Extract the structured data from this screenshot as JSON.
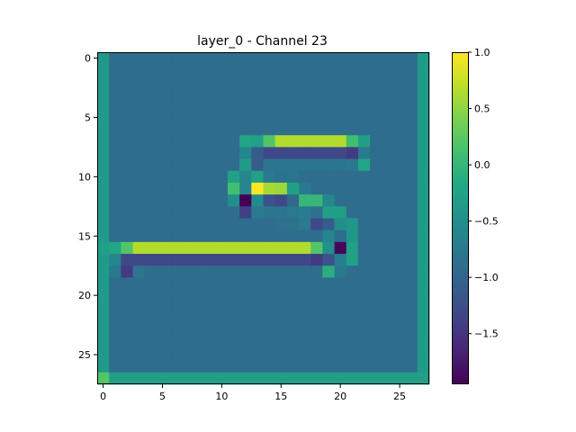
{
  "chart_data": {
    "type": "heatmap",
    "title": "layer_0 - Channel 23",
    "xlabel": "",
    "ylabel": "",
    "rows": 28,
    "cols": 28,
    "xlim": [
      -0.5,
      27.5
    ],
    "ylim": [
      27.5,
      -0.5
    ],
    "x_ticks": [
      0,
      5,
      10,
      15,
      20,
      25
    ],
    "y_ticks": [
      0,
      5,
      10,
      15,
      20,
      25
    ],
    "colormap": "viridis",
    "vmin": -1.95,
    "vmax": 1.0,
    "colorbar_ticks": [
      {
        "value": 1.0,
        "label": "1.0"
      },
      {
        "value": 0.5,
        "label": "0.5"
      },
      {
        "value": 0.0,
        "label": "0.0"
      },
      {
        "value": -0.5,
        "label": "−0.5"
      },
      {
        "value": -1.0,
        "label": "−1.0"
      },
      {
        "value": -1.5,
        "label": "−1.5"
      }
    ],
    "background_value": -0.9,
    "border": {
      "left": -0.35,
      "right": -0.35,
      "bottom": -0.3,
      "top": -0.9
    },
    "overrides": [
      {
        "r": 0,
        "c": 0,
        "v": -0.4
      },
      {
        "r": 0,
        "c": 27,
        "v": -0.35
      },
      {
        "r": 27,
        "c": 0,
        "v": 0.2
      },
      {
        "r": 27,
        "c": 27,
        "v": -0.3
      },
      {
        "r": 7,
        "c": 12,
        "v": -0.2
      },
      {
        "r": 7,
        "c": 13,
        "v": -0.3
      },
      {
        "r": 7,
        "c": 14,
        "v": 0.2
      },
      {
        "r": 7,
        "c": 15,
        "v": 0.65
      },
      {
        "r": 7,
        "c": 16,
        "v": 0.65
      },
      {
        "r": 7,
        "c": 17,
        "v": 0.65
      },
      {
        "r": 7,
        "c": 18,
        "v": 0.65
      },
      {
        "r": 7,
        "c": 19,
        "v": 0.65
      },
      {
        "r": 7,
        "c": 20,
        "v": 0.65
      },
      {
        "r": 7,
        "c": 21,
        "v": 0.1
      },
      {
        "r": 7,
        "c": 22,
        "v": -0.3
      },
      {
        "r": 8,
        "c": 12,
        "v": -0.6
      },
      {
        "r": 8,
        "c": 13,
        "v": -1.1
      },
      {
        "r": 8,
        "c": 14,
        "v": -1.3
      },
      {
        "r": 8,
        "c": 15,
        "v": -1.3
      },
      {
        "r": 8,
        "c": 16,
        "v": -1.3
      },
      {
        "r": 8,
        "c": 17,
        "v": -1.3
      },
      {
        "r": 8,
        "c": 18,
        "v": -1.3
      },
      {
        "r": 8,
        "c": 19,
        "v": -1.3
      },
      {
        "r": 8,
        "c": 20,
        "v": -1.3
      },
      {
        "r": 8,
        "c": 21,
        "v": -1.45
      },
      {
        "r": 8,
        "c": 22,
        "v": -0.75
      },
      {
        "r": 9,
        "c": 12,
        "v": -0.35
      },
      {
        "r": 9,
        "c": 13,
        "v": -1.1
      },
      {
        "r": 9,
        "c": 14,
        "v": -0.8
      },
      {
        "r": 9,
        "c": 15,
        "v": -0.8
      },
      {
        "r": 9,
        "c": 16,
        "v": -0.8
      },
      {
        "r": 9,
        "c": 17,
        "v": -0.8
      },
      {
        "r": 9,
        "c": 18,
        "v": -0.8
      },
      {
        "r": 9,
        "c": 19,
        "v": -0.8
      },
      {
        "r": 9,
        "c": 20,
        "v": -0.8
      },
      {
        "r": 9,
        "c": 21,
        "v": -0.75
      },
      {
        "r": 9,
        "c": 22,
        "v": -0.2
      },
      {
        "r": 10,
        "c": 11,
        "v": -0.3
      },
      {
        "r": 10,
        "c": 12,
        "v": -0.6
      },
      {
        "r": 10,
        "c": 13,
        "v": -0.3
      },
      {
        "r": 10,
        "c": 14,
        "v": -0.75
      },
      {
        "r": 10,
        "c": 15,
        "v": -0.85
      },
      {
        "r": 10,
        "c": 16,
        "v": -0.8
      },
      {
        "r": 11,
        "c": 11,
        "v": 0.1
      },
      {
        "r": 11,
        "c": 12,
        "v": -0.6
      },
      {
        "r": 11,
        "c": 13,
        "v": 1.0
      },
      {
        "r": 11,
        "c": 14,
        "v": 0.6
      },
      {
        "r": 11,
        "c": 15,
        "v": 0.55
      },
      {
        "r": 11,
        "c": 16,
        "v": -0.3
      },
      {
        "r": 11,
        "c": 17,
        "v": -0.75
      },
      {
        "r": 12,
        "c": 11,
        "v": -0.5
      },
      {
        "r": 12,
        "c": 12,
        "v": -1.95
      },
      {
        "r": 12,
        "c": 13,
        "v": -0.55
      },
      {
        "r": 12,
        "c": 14,
        "v": -1.2
      },
      {
        "r": 12,
        "c": 15,
        "v": -1.3
      },
      {
        "r": 12,
        "c": 16,
        "v": -0.95
      },
      {
        "r": 12,
        "c": 17,
        "v": 0.0
      },
      {
        "r": 12,
        "c": 18,
        "v": 0.0
      },
      {
        "r": 12,
        "c": 19,
        "v": -0.6
      },
      {
        "r": 13,
        "c": 12,
        "v": -1.4
      },
      {
        "r": 13,
        "c": 13,
        "v": -0.75
      },
      {
        "r": 13,
        "c": 14,
        "v": -0.8
      },
      {
        "r": 13,
        "c": 15,
        "v": -0.8
      },
      {
        "r": 13,
        "c": 16,
        "v": -0.75
      },
      {
        "r": 13,
        "c": 17,
        "v": -0.7
      },
      {
        "r": 13,
        "c": 18,
        "v": -0.85
      },
      {
        "r": 13,
        "c": 19,
        "v": -0.3
      },
      {
        "r": 13,
        "c": 20,
        "v": -0.3
      },
      {
        "r": 14,
        "c": 15,
        "v": -0.85
      },
      {
        "r": 14,
        "c": 16,
        "v": -0.85
      },
      {
        "r": 14,
        "c": 17,
        "v": -0.75
      },
      {
        "r": 14,
        "c": 18,
        "v": -1.3
      },
      {
        "r": 14,
        "c": 19,
        "v": -1.1
      },
      {
        "r": 14,
        "c": 20,
        "v": -0.5
      },
      {
        "r": 14,
        "c": 21,
        "v": -0.4
      },
      {
        "r": 15,
        "c": 19,
        "v": -0.6
      },
      {
        "r": 15,
        "c": 20,
        "v": -0.9
      },
      {
        "r": 15,
        "c": 21,
        "v": -0.4
      },
      {
        "r": 16,
        "c": 0,
        "v": -0.3
      },
      {
        "r": 16,
        "c": 1,
        "v": -0.2
      },
      {
        "r": 16,
        "c": 2,
        "v": 0.2
      },
      {
        "r": 16,
        "c": 3,
        "v": 0.65
      },
      {
        "r": 16,
        "c": 4,
        "v": 0.65
      },
      {
        "r": 16,
        "c": 5,
        "v": 0.65
      },
      {
        "r": 16,
        "c": 6,
        "v": 0.65
      },
      {
        "r": 16,
        "c": 7,
        "v": 0.65
      },
      {
        "r": 16,
        "c": 8,
        "v": 0.65
      },
      {
        "r": 16,
        "c": 9,
        "v": 0.65
      },
      {
        "r": 16,
        "c": 10,
        "v": 0.65
      },
      {
        "r": 16,
        "c": 11,
        "v": 0.65
      },
      {
        "r": 16,
        "c": 12,
        "v": 0.65
      },
      {
        "r": 16,
        "c": 13,
        "v": 0.65
      },
      {
        "r": 16,
        "c": 14,
        "v": 0.65
      },
      {
        "r": 16,
        "c": 15,
        "v": 0.65
      },
      {
        "r": 16,
        "c": 16,
        "v": 0.65
      },
      {
        "r": 16,
        "c": 17,
        "v": 0.65
      },
      {
        "r": 16,
        "c": 18,
        "v": 0.2
      },
      {
        "r": 16,
        "c": 19,
        "v": -0.5
      },
      {
        "r": 16,
        "c": 20,
        "v": -1.9
      },
      {
        "r": 16,
        "c": 21,
        "v": -0.3
      },
      {
        "r": 17,
        "c": 1,
        "v": -0.6
      },
      {
        "r": 17,
        "c": 2,
        "v": -1.3
      },
      {
        "r": 17,
        "c": 3,
        "v": -1.3
      },
      {
        "r": 17,
        "c": 4,
        "v": -1.3
      },
      {
        "r": 17,
        "c": 5,
        "v": -1.3
      },
      {
        "r": 17,
        "c": 6,
        "v": -1.3
      },
      {
        "r": 17,
        "c": 7,
        "v": -1.3
      },
      {
        "r": 17,
        "c": 8,
        "v": -1.3
      },
      {
        "r": 17,
        "c": 9,
        "v": -1.3
      },
      {
        "r": 17,
        "c": 10,
        "v": -1.3
      },
      {
        "r": 17,
        "c": 11,
        "v": -1.3
      },
      {
        "r": 17,
        "c": 12,
        "v": -1.3
      },
      {
        "r": 17,
        "c": 13,
        "v": -1.3
      },
      {
        "r": 17,
        "c": 14,
        "v": -1.3
      },
      {
        "r": 17,
        "c": 15,
        "v": -1.3
      },
      {
        "r": 17,
        "c": 16,
        "v": -1.3
      },
      {
        "r": 17,
        "c": 17,
        "v": -1.3
      },
      {
        "r": 17,
        "c": 18,
        "v": -1.45
      },
      {
        "r": 17,
        "c": 19,
        "v": -1.2
      },
      {
        "r": 17,
        "c": 20,
        "v": -0.7
      },
      {
        "r": 17,
        "c": 21,
        "v": -0.3
      },
      {
        "r": 18,
        "c": 1,
        "v": -0.75
      },
      {
        "r": 18,
        "c": 2,
        "v": -1.45
      },
      {
        "r": 18,
        "c": 3,
        "v": -0.8
      },
      {
        "r": 18,
        "c": 19,
        "v": -0.1
      },
      {
        "r": 18,
        "c": 20,
        "v": -0.75
      }
    ]
  }
}
